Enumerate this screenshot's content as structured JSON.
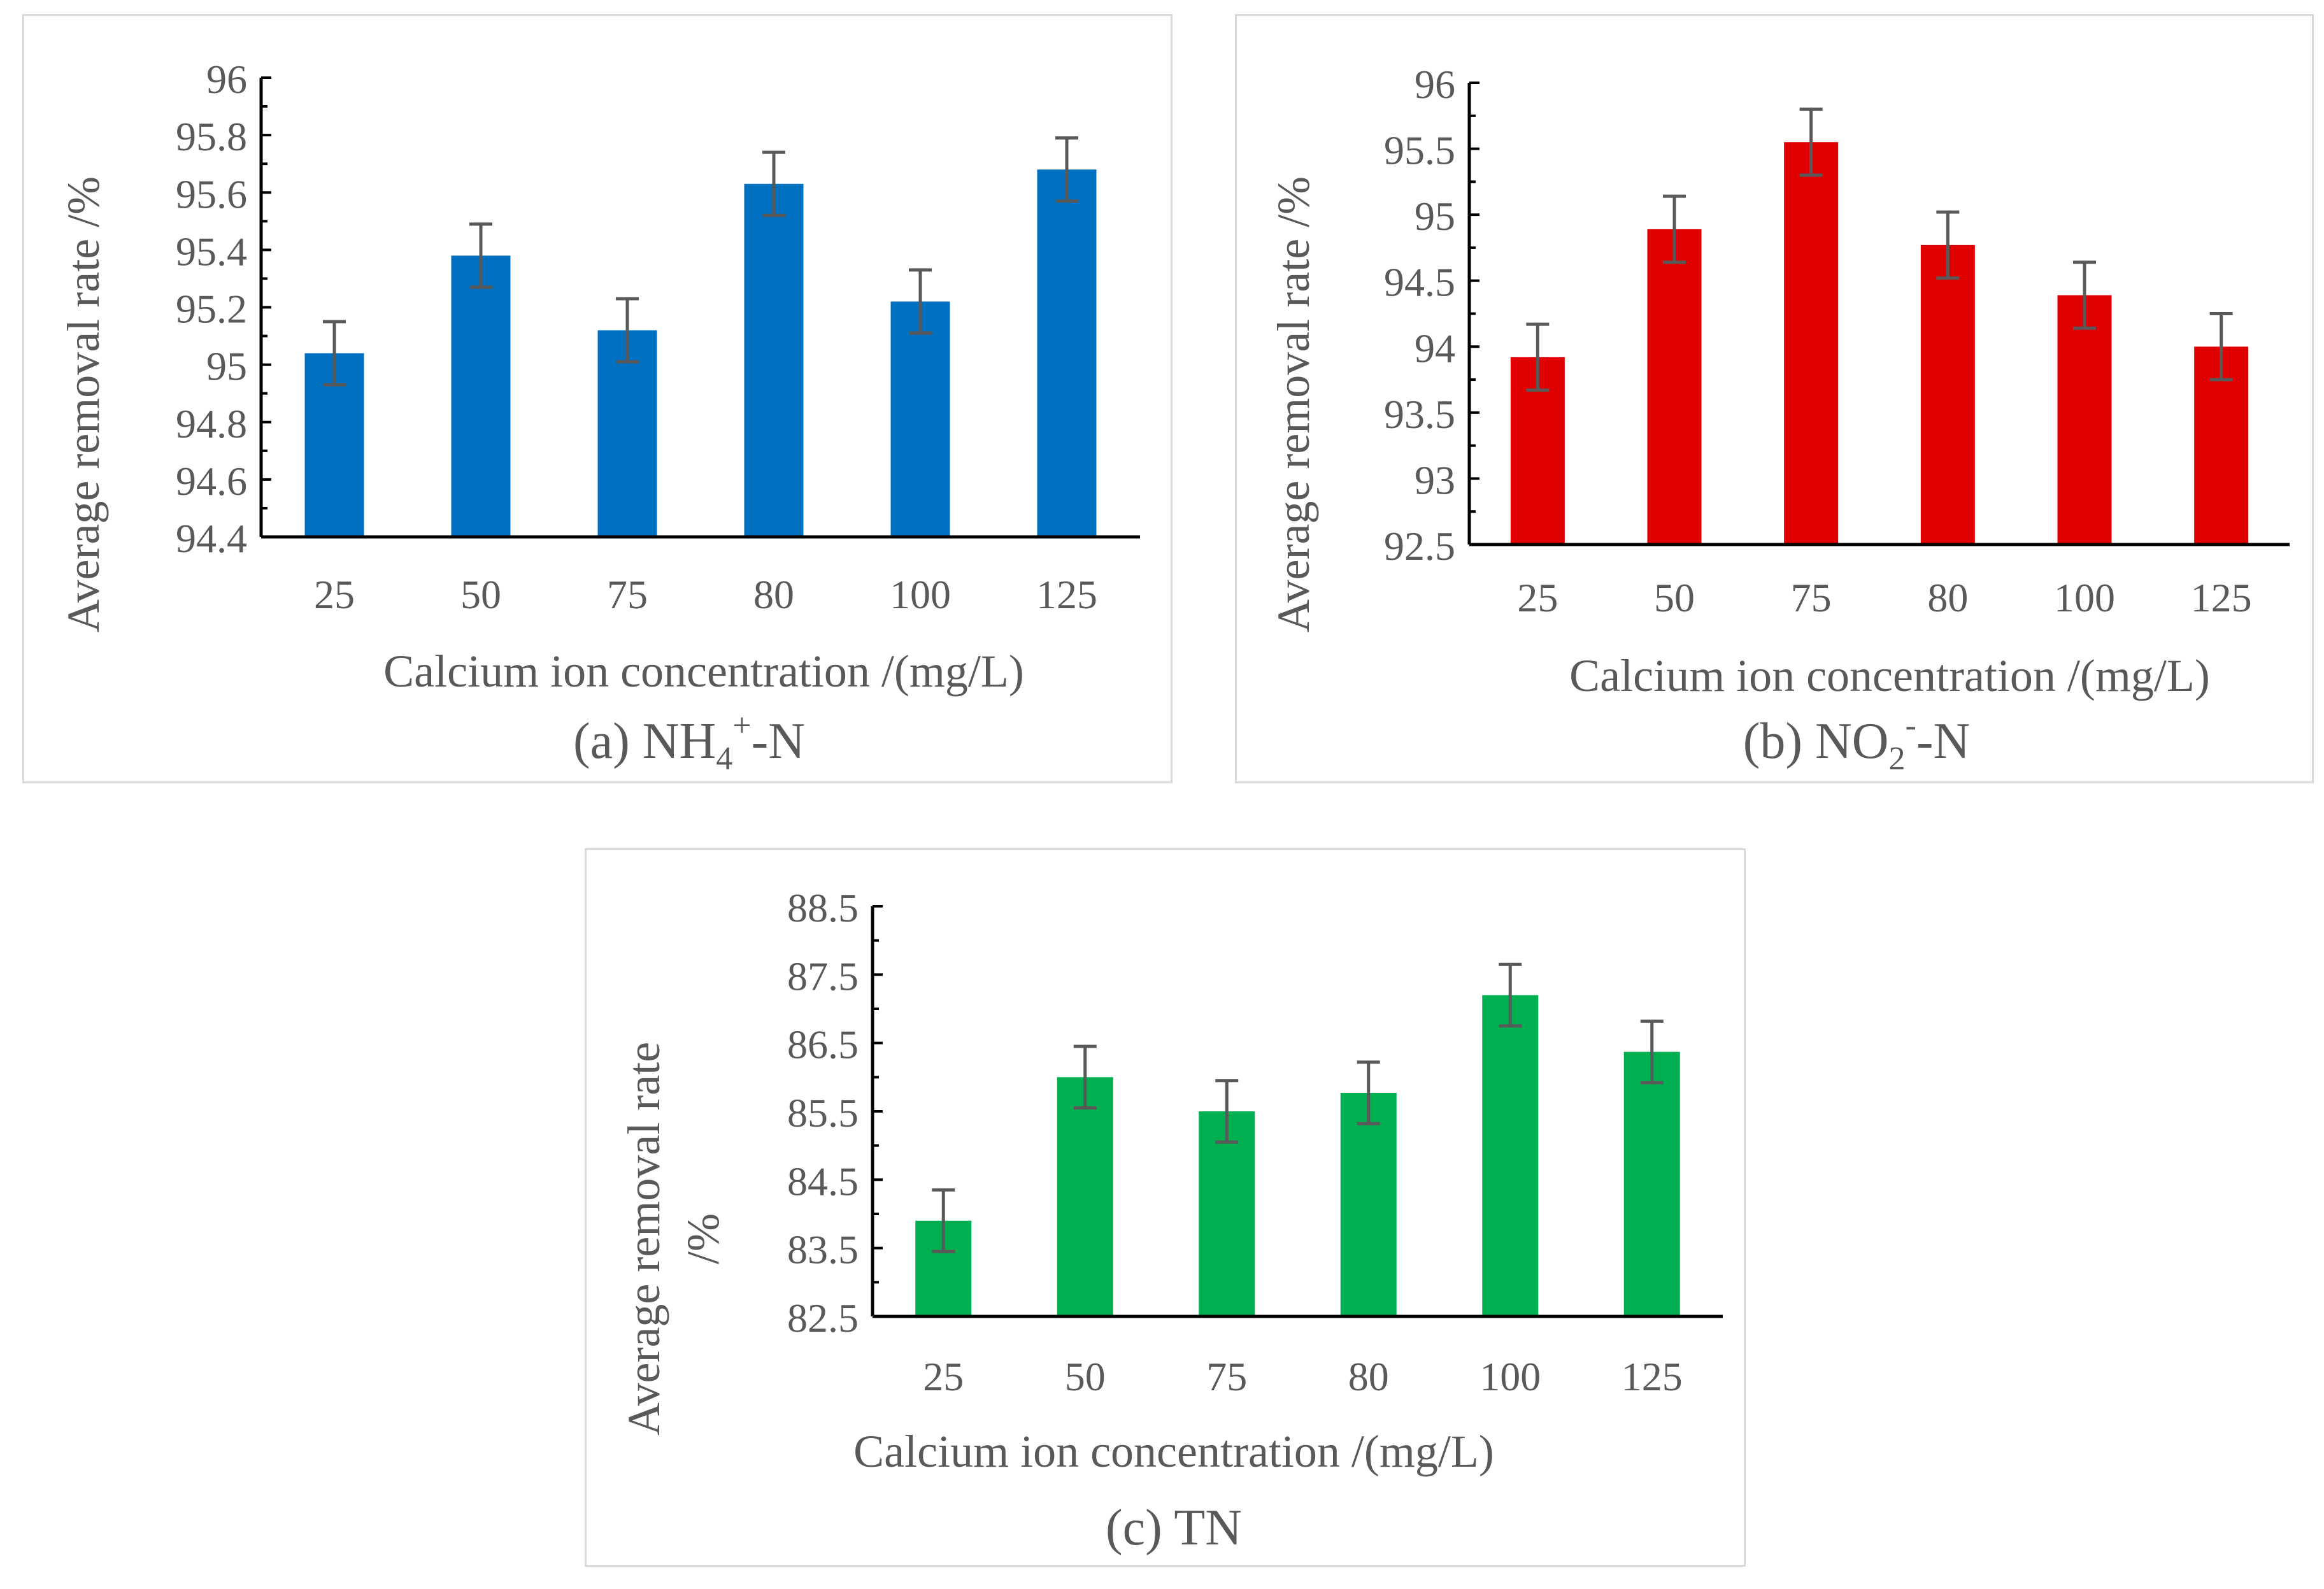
{
  "chart_data": [
    {
      "type": "bar",
      "panel_label": "(a) NH",
      "panel_sub": "4",
      "panel_sup": "+",
      "panel_suffix": "-N",
      "xlabel": "Calcium ion concentration /(mg/L)",
      "ylabel": "Average removal rate /%",
      "categories": [
        "25",
        "50",
        "75",
        "80",
        "100",
        "125"
      ],
      "values": [
        95.04,
        95.38,
        95.12,
        95.63,
        95.22,
        95.68
      ],
      "errors": [
        0.11,
        0.11,
        0.11,
        0.11,
        0.11,
        0.11
      ],
      "ylim": [
        94.4,
        96
      ],
      "yticks": [
        "94.4",
        "94.6",
        "94.8",
        "95",
        "95.2",
        "95.4",
        "95.6",
        "95.8",
        "96"
      ],
      "color": "#0070C0"
    },
    {
      "type": "bar",
      "panel_label": "(b) NO",
      "panel_sub": "2",
      "panel_sup": "-",
      "panel_suffix": "-N",
      "xlabel": "Calcium ion concentration /(mg/L)",
      "ylabel": "Average removal rate /%",
      "categories": [
        "25",
        "50",
        "75",
        "80",
        "100",
        "125"
      ],
      "values": [
        93.92,
        94.89,
        95.55,
        94.77,
        94.39,
        94.0
      ],
      "errors": [
        0.25,
        0.25,
        0.25,
        0.25,
        0.25,
        0.25
      ],
      "ylim": [
        92.5,
        96
      ],
      "yticks": [
        "92.5",
        "93",
        "93.5",
        "94",
        "94.5",
        "95",
        "95.5",
        "96"
      ],
      "color": "#E00000"
    },
    {
      "type": "bar",
      "panel_label": "(c) TN",
      "panel_sub": "",
      "panel_sup": "",
      "panel_suffix": "",
      "xlabel": "Calcium ion concentration /(mg/L)",
      "ylabel_line1": "Average removal rate",
      "ylabel_line2": "/%",
      "categories": [
        "25",
        "50",
        "75",
        "80",
        "100",
        "125"
      ],
      "values": [
        83.9,
        86.0,
        85.5,
        85.77,
        87.2,
        86.37
      ],
      "errors": [
        0.45,
        0.45,
        0.45,
        0.45,
        0.45,
        0.45
      ],
      "ylim": [
        82.5,
        88.5
      ],
      "yticks": [
        "82.5",
        "83.5",
        "84.5",
        "85.5",
        "86.5",
        "87.5",
        "88.5"
      ],
      "color": "#00B050"
    }
  ]
}
